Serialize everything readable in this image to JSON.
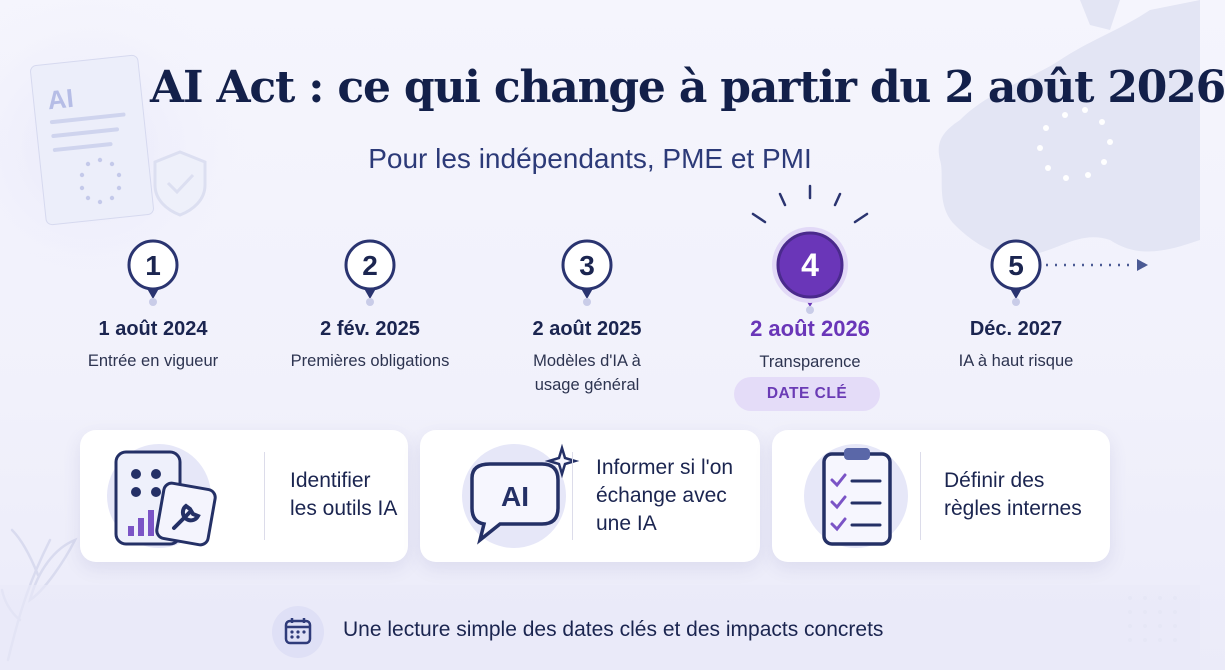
{
  "header": {
    "title": "AI Act : ce qui change à partir du 2 août 2026",
    "subtitle": "Pour les indépendants, PME et PMI",
    "doc_label": "AI"
  },
  "timeline": {
    "steps": [
      {
        "number": "1",
        "date": "1 août 2024",
        "description": [
          "Entrée en vigueur"
        ]
      },
      {
        "number": "2",
        "date": "2 fév. 2025",
        "description": [
          "Premières obligations"
        ]
      },
      {
        "number": "3",
        "date": "2 août 2025",
        "description": [
          "Modèles d'IA à",
          "usage général"
        ]
      },
      {
        "number": "4",
        "date": "2 août 2026",
        "description": [
          "Transparence"
        ],
        "key": true
      },
      {
        "number": "5",
        "date": "Déc. 2027",
        "description": [
          "IA à haut risque"
        ]
      }
    ],
    "key_badge": "DATE CLÉ"
  },
  "cards": [
    {
      "lines": [
        "Identifier",
        "les outils IA"
      ],
      "icon": "apps-tools-icon"
    },
    {
      "lines": [
        "Informer si l'on",
        "échange avec",
        "une IA"
      ],
      "icon": "ai-chat-bubble-icon",
      "icon_text": "AI"
    },
    {
      "lines": [
        "Définir des",
        "règles internes"
      ],
      "icon": "checklist-clipboard-icon"
    }
  ],
  "footer": {
    "text": "Une lecture simple des dates clés et des impacts concrets",
    "icon": "calendar-icon"
  },
  "colors": {
    "navy": "#1b2550",
    "line": "#4b5a94",
    "purple": "#6a36b8",
    "badge_bg": "#e4dcf8"
  }
}
